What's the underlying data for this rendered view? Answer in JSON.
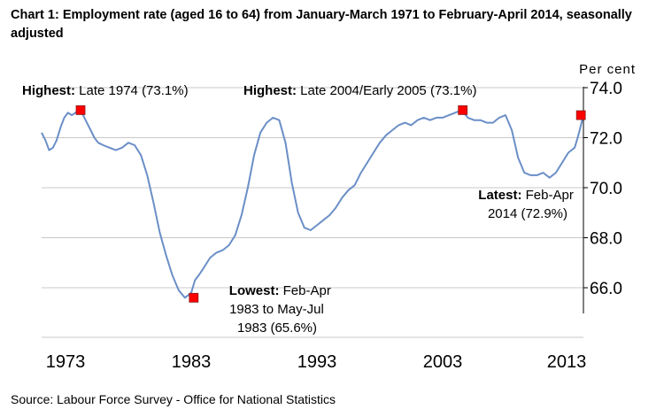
{
  "chart_data": {
    "type": "line",
    "title": "Chart 1: Employment rate (aged 16 to 64) from January-March 1971 to February-April 2014, seasonally adjusted",
    "ylabel": "Per cent",
    "xlabel": "",
    "ylim": [
      65,
      74
    ],
    "xlim": [
      1971.1,
      2014.2
    ],
    "y_ticks": [
      "74.0",
      "72.0",
      "70.0",
      "68.0",
      "66.0"
    ],
    "y_tick_values": [
      74,
      72,
      70,
      68,
      66
    ],
    "x_tick_labels": [
      "1973",
      "1983",
      "1993",
      "2003",
      "2013"
    ],
    "x_tick_values": [
      1973,
      1983,
      1993,
      2003,
      2013
    ],
    "grid": true,
    "series": [
      {
        "name": "Employment rate (aged 16 to 64)",
        "color": "#6b8fc7",
        "x": [
          1971.1,
          1971.4,
          1971.7,
          1972.0,
          1972.3,
          1972.6,
          1972.9,
          1973.2,
          1973.5,
          1973.8,
          1974.1,
          1974.4,
          1974.7,
          1975.0,
          1975.3,
          1975.6,
          1976.0,
          1976.5,
          1977.0,
          1977.5,
          1978.0,
          1978.5,
          1979.0,
          1979.5,
          1980.0,
          1980.5,
          1981.0,
          1981.5,
          1982.0,
          1982.5,
          1983.0,
          1983.3,
          1983.6,
          1984.0,
          1984.5,
          1985.0,
          1985.5,
          1986.0,
          1986.5,
          1987.0,
          1987.5,
          1988.0,
          1988.5,
          1989.0,
          1989.5,
          1990.0,
          1990.5,
          1991.0,
          1991.5,
          1992.0,
          1992.5,
          1993.0,
          1993.5,
          1994.0,
          1994.5,
          1995.0,
          1995.5,
          1996.0,
          1996.5,
          1997.0,
          1997.5,
          1998.0,
          1998.5,
          1999.0,
          1999.5,
          2000.0,
          2000.5,
          2001.0,
          2001.5,
          2002.0,
          2002.5,
          2003.0,
          2003.5,
          2004.0,
          2004.5,
          2005.0,
          2005.5,
          2006.0,
          2006.5,
          2007.0,
          2007.5,
          2008.0,
          2008.5,
          2009.0,
          2009.5,
          2010.0,
          2010.5,
          2011.0,
          2011.5,
          2012.0,
          2012.5,
          2013.0,
          2013.5,
          2013.8,
          2014.2
        ],
        "values": [
          72.2,
          71.9,
          71.5,
          71.6,
          71.9,
          72.4,
          72.8,
          73.0,
          72.9,
          73.0,
          73.1,
          72.9,
          72.6,
          72.3,
          72.0,
          71.8,
          71.7,
          71.6,
          71.5,
          71.6,
          71.8,
          71.7,
          71.3,
          70.5,
          69.4,
          68.2,
          67.3,
          66.5,
          65.9,
          65.6,
          65.8,
          66.3,
          66.5,
          66.8,
          67.2,
          67.4,
          67.5,
          67.7,
          68.1,
          68.9,
          70.0,
          71.3,
          72.2,
          72.6,
          72.8,
          72.7,
          71.8,
          70.2,
          69.0,
          68.4,
          68.3,
          68.5,
          68.7,
          68.9,
          69.2,
          69.6,
          69.9,
          70.1,
          70.6,
          71.0,
          71.4,
          71.8,
          72.1,
          72.3,
          72.5,
          72.6,
          72.5,
          72.7,
          72.8,
          72.7,
          72.8,
          72.8,
          72.9,
          73.0,
          73.1,
          72.8,
          72.7,
          72.7,
          72.6,
          72.6,
          72.8,
          72.9,
          72.3,
          71.2,
          70.6,
          70.5,
          70.5,
          70.6,
          70.4,
          70.6,
          71.0,
          71.4,
          71.6,
          72.1,
          72.9
        ]
      }
    ],
    "markers": [
      {
        "x": 1974.2,
        "y": 73.1,
        "color": "#ff0000"
      },
      {
        "x": 1983.2,
        "y": 65.6,
        "color": "#ff0000"
      },
      {
        "x": 2004.6,
        "y": 73.1,
        "color": "#ff0000"
      },
      {
        "x": 2014.0,
        "y": 72.9,
        "color": "#ff0000"
      }
    ],
    "annotations": {
      "highest_1": {
        "bold": "Highest:",
        "text": " Late 1974 (73.1%)"
      },
      "highest_2": {
        "bold": "Highest:",
        "text": " Late 2004/Early 2005 (73.1%)"
      },
      "lowest": {
        "bold": "Lowest:",
        "text": " Feb-Apr",
        "line2": "1983 to May-Jul",
        "line3": "1983 (65.6%)"
      },
      "latest": {
        "bold": "Latest:",
        "text": " Feb-Apr",
        "line2": "2014 (72.9%)"
      }
    }
  },
  "source": "Source: Labour Force Survey - Office for National Statistics"
}
